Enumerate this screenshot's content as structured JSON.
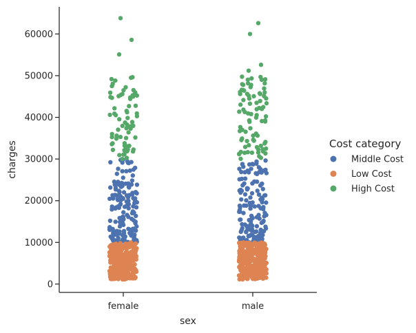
{
  "chart_data": {
    "type": "scatter",
    "subtype": "strip",
    "xlabel": "sex",
    "ylabel": "charges",
    "categories": [
      "female",
      "male"
    ],
    "ylim": [
      -2000,
      66500
    ],
    "yticks": [
      0,
      10000,
      20000,
      30000,
      40000,
      50000,
      60000
    ],
    "grid": false,
    "legend": {
      "title": "Cost category",
      "placement": "right"
    },
    "series": [
      {
        "name": "Middle Cost",
        "color": "#4c72b0",
        "range": [
          10000,
          30000
        ],
        "count_per_category": [
          170,
          150
        ]
      },
      {
        "name": "Low Cost",
        "color": "#dd8452",
        "range": [
          1100,
          10000
        ],
        "count_per_category": [
          330,
          340
        ]
      },
      {
        "name": "High Cost",
        "color": "#55a868",
        "range": [
          30000,
          50000
        ],
        "count_per_category": [
          70,
          85
        ],
        "outliers": {
          "female": [
            55100,
            58600,
            63800
          ],
          "male": [
            51200,
            52600,
            60000,
            62600
          ]
        }
      }
    ]
  }
}
